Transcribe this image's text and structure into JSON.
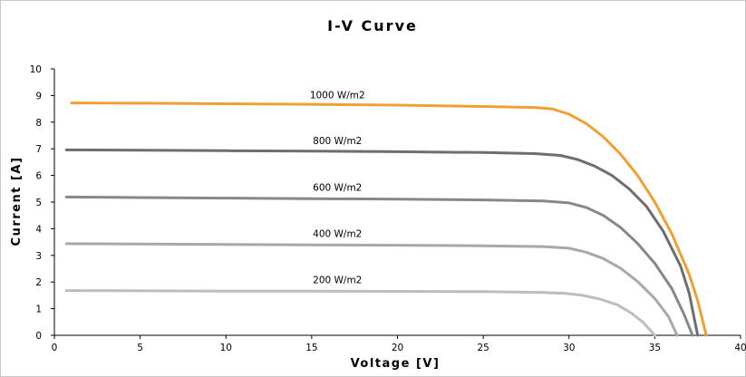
{
  "chart_data": {
    "type": "line",
    "title": "I-V Curve",
    "xlabel": "Voltage [V]",
    "ylabel": "Current [A]",
    "xlim": [
      0,
      40
    ],
    "ylim": [
      0,
      10
    ],
    "xticks": [
      0,
      5,
      10,
      15,
      20,
      25,
      30,
      35,
      40
    ],
    "yticks": [
      0,
      1,
      2,
      3,
      4,
      5,
      6,
      7,
      8,
      9,
      10
    ],
    "grid": false,
    "legend": "none",
    "series": [
      {
        "name": "1000 W/m2",
        "color": "#f0a030",
        "label_at": [
          16.5,
          8.73
        ],
        "points": [
          [
            1,
            8.72
          ],
          [
            5,
            8.71
          ],
          [
            10,
            8.69
          ],
          [
            15,
            8.67
          ],
          [
            20,
            8.64
          ],
          [
            25,
            8.59
          ],
          [
            28,
            8.55
          ],
          [
            29,
            8.5
          ],
          [
            30,
            8.3
          ],
          [
            31,
            7.95
          ],
          [
            32,
            7.45
          ],
          [
            33,
            6.8
          ],
          [
            34,
            6.0
          ],
          [
            35,
            5.0
          ],
          [
            36,
            3.8
          ],
          [
            37,
            2.3
          ],
          [
            37.5,
            1.3
          ],
          [
            38,
            0
          ]
        ]
      },
      {
        "name": "800 W/m2",
        "color": "#6e6e6e",
        "label_at": [
          16.5,
          7.0
        ],
        "points": [
          [
            0.7,
            6.96
          ],
          [
            5,
            6.95
          ],
          [
            10,
            6.93
          ],
          [
            15,
            6.91
          ],
          [
            20,
            6.89
          ],
          [
            25,
            6.86
          ],
          [
            28,
            6.82
          ],
          [
            29.5,
            6.75
          ],
          [
            30.5,
            6.6
          ],
          [
            31.5,
            6.35
          ],
          [
            32.5,
            6.0
          ],
          [
            33.5,
            5.5
          ],
          [
            34.5,
            4.85
          ],
          [
            35.5,
            3.9
          ],
          [
            36.5,
            2.6
          ],
          [
            37,
            1.6
          ],
          [
            37.5,
            0
          ]
        ]
      },
      {
        "name": "600 W/m2",
        "color": "#888888",
        "label_at": [
          16.5,
          5.25
        ],
        "points": [
          [
            0.7,
            5.19
          ],
          [
            5,
            5.17
          ],
          [
            10,
            5.15
          ],
          [
            15,
            5.13
          ],
          [
            20,
            5.11
          ],
          [
            25,
            5.08
          ],
          [
            28.5,
            5.04
          ],
          [
            30,
            4.97
          ],
          [
            31,
            4.8
          ],
          [
            32,
            4.5
          ],
          [
            33,
            4.05
          ],
          [
            34,
            3.45
          ],
          [
            35,
            2.7
          ],
          [
            36,
            1.75
          ],
          [
            36.7,
            0.8
          ],
          [
            37.2,
            0
          ]
        ]
      },
      {
        "name": "400 W/m2",
        "color": "#a8a8a8",
        "label_at": [
          16.5,
          3.52
        ],
        "points": [
          [
            0.7,
            3.44
          ],
          [
            5,
            3.43
          ],
          [
            10,
            3.41
          ],
          [
            15,
            3.39
          ],
          [
            20,
            3.38
          ],
          [
            25,
            3.36
          ],
          [
            28.5,
            3.33
          ],
          [
            30,
            3.27
          ],
          [
            31,
            3.12
          ],
          [
            32,
            2.88
          ],
          [
            33,
            2.52
          ],
          [
            34,
            2.02
          ],
          [
            35,
            1.38
          ],
          [
            35.8,
            0.7
          ],
          [
            36.3,
            0
          ]
        ]
      },
      {
        "name": "200 W/m2",
        "color": "#bdbdbd",
        "label_at": [
          16.5,
          1.78
        ],
        "points": [
          [
            0.7,
            1.68
          ],
          [
            5,
            1.67
          ],
          [
            10,
            1.66
          ],
          [
            15,
            1.66
          ],
          [
            20,
            1.65
          ],
          [
            25,
            1.64
          ],
          [
            28.5,
            1.61
          ],
          [
            29.8,
            1.57
          ],
          [
            30.8,
            1.5
          ],
          [
            31.8,
            1.36
          ],
          [
            32.8,
            1.15
          ],
          [
            33.6,
            0.85
          ],
          [
            34.3,
            0.5
          ],
          [
            35,
            0
          ]
        ]
      }
    ]
  }
}
